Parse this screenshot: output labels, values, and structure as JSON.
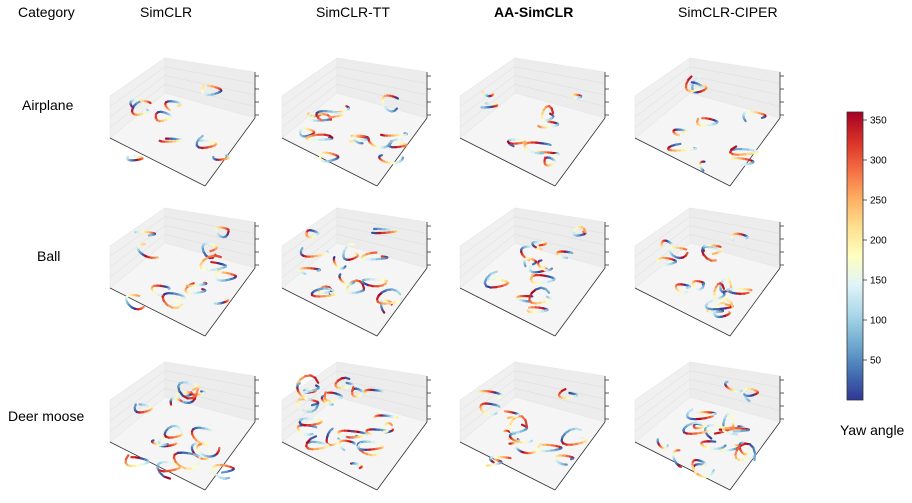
{
  "header": {
    "category": "Category",
    "methods": [
      "SimCLR",
      "SimCLR-TT",
      "AA-SimCLR",
      "SimCLR-CIPER"
    ],
    "bold_method": "AA-SimCLR"
  },
  "rows": [
    "Airplane",
    "Ball",
    "Deer moose"
  ],
  "colorbar": {
    "label": "Yaw angle",
    "min": 0,
    "max": 360,
    "ticks": [
      50,
      100,
      150,
      200,
      250,
      300,
      350
    ],
    "colormap": [
      "#313695",
      "#4575b4",
      "#74add1",
      "#abd9e9",
      "#e0f3f8",
      "#ffffbf",
      "#fee090",
      "#fdae61",
      "#f46d43",
      "#d73027",
      "#a50026"
    ]
  },
  "chart_data": {
    "type": "scatter",
    "title": "",
    "description_free": true,
    "grid": true,
    "panels": [
      {
        "row": "Airplane",
        "method": "SimCLR",
        "curves": 9
      },
      {
        "row": "Airplane",
        "method": "SimCLR-TT",
        "curves": 14
      },
      {
        "row": "Airplane",
        "method": "AA-SimCLR",
        "curves": 9
      },
      {
        "row": "Airplane",
        "method": "SimCLR-CIPER",
        "curves": 9
      },
      {
        "row": "Ball",
        "method": "SimCLR",
        "curves": 12
      },
      {
        "row": "Ball",
        "method": "SimCLR-TT",
        "curves": 14
      },
      {
        "row": "Ball",
        "method": "AA-SimCLR",
        "curves": 12
      },
      {
        "row": "Ball",
        "method": "SimCLR-CIPER",
        "curves": 14
      },
      {
        "row": "Deer moose",
        "method": "SimCLR",
        "curves": 16
      },
      {
        "row": "Deer moose",
        "method": "SimCLR-TT",
        "curves": 22
      },
      {
        "row": "Deer moose",
        "method": "AA-SimCLR",
        "curves": 14
      },
      {
        "row": "Deer moose",
        "method": "SimCLR-CIPER",
        "curves": 18
      }
    ],
    "colorbar_range": [
      0,
      360
    ]
  }
}
